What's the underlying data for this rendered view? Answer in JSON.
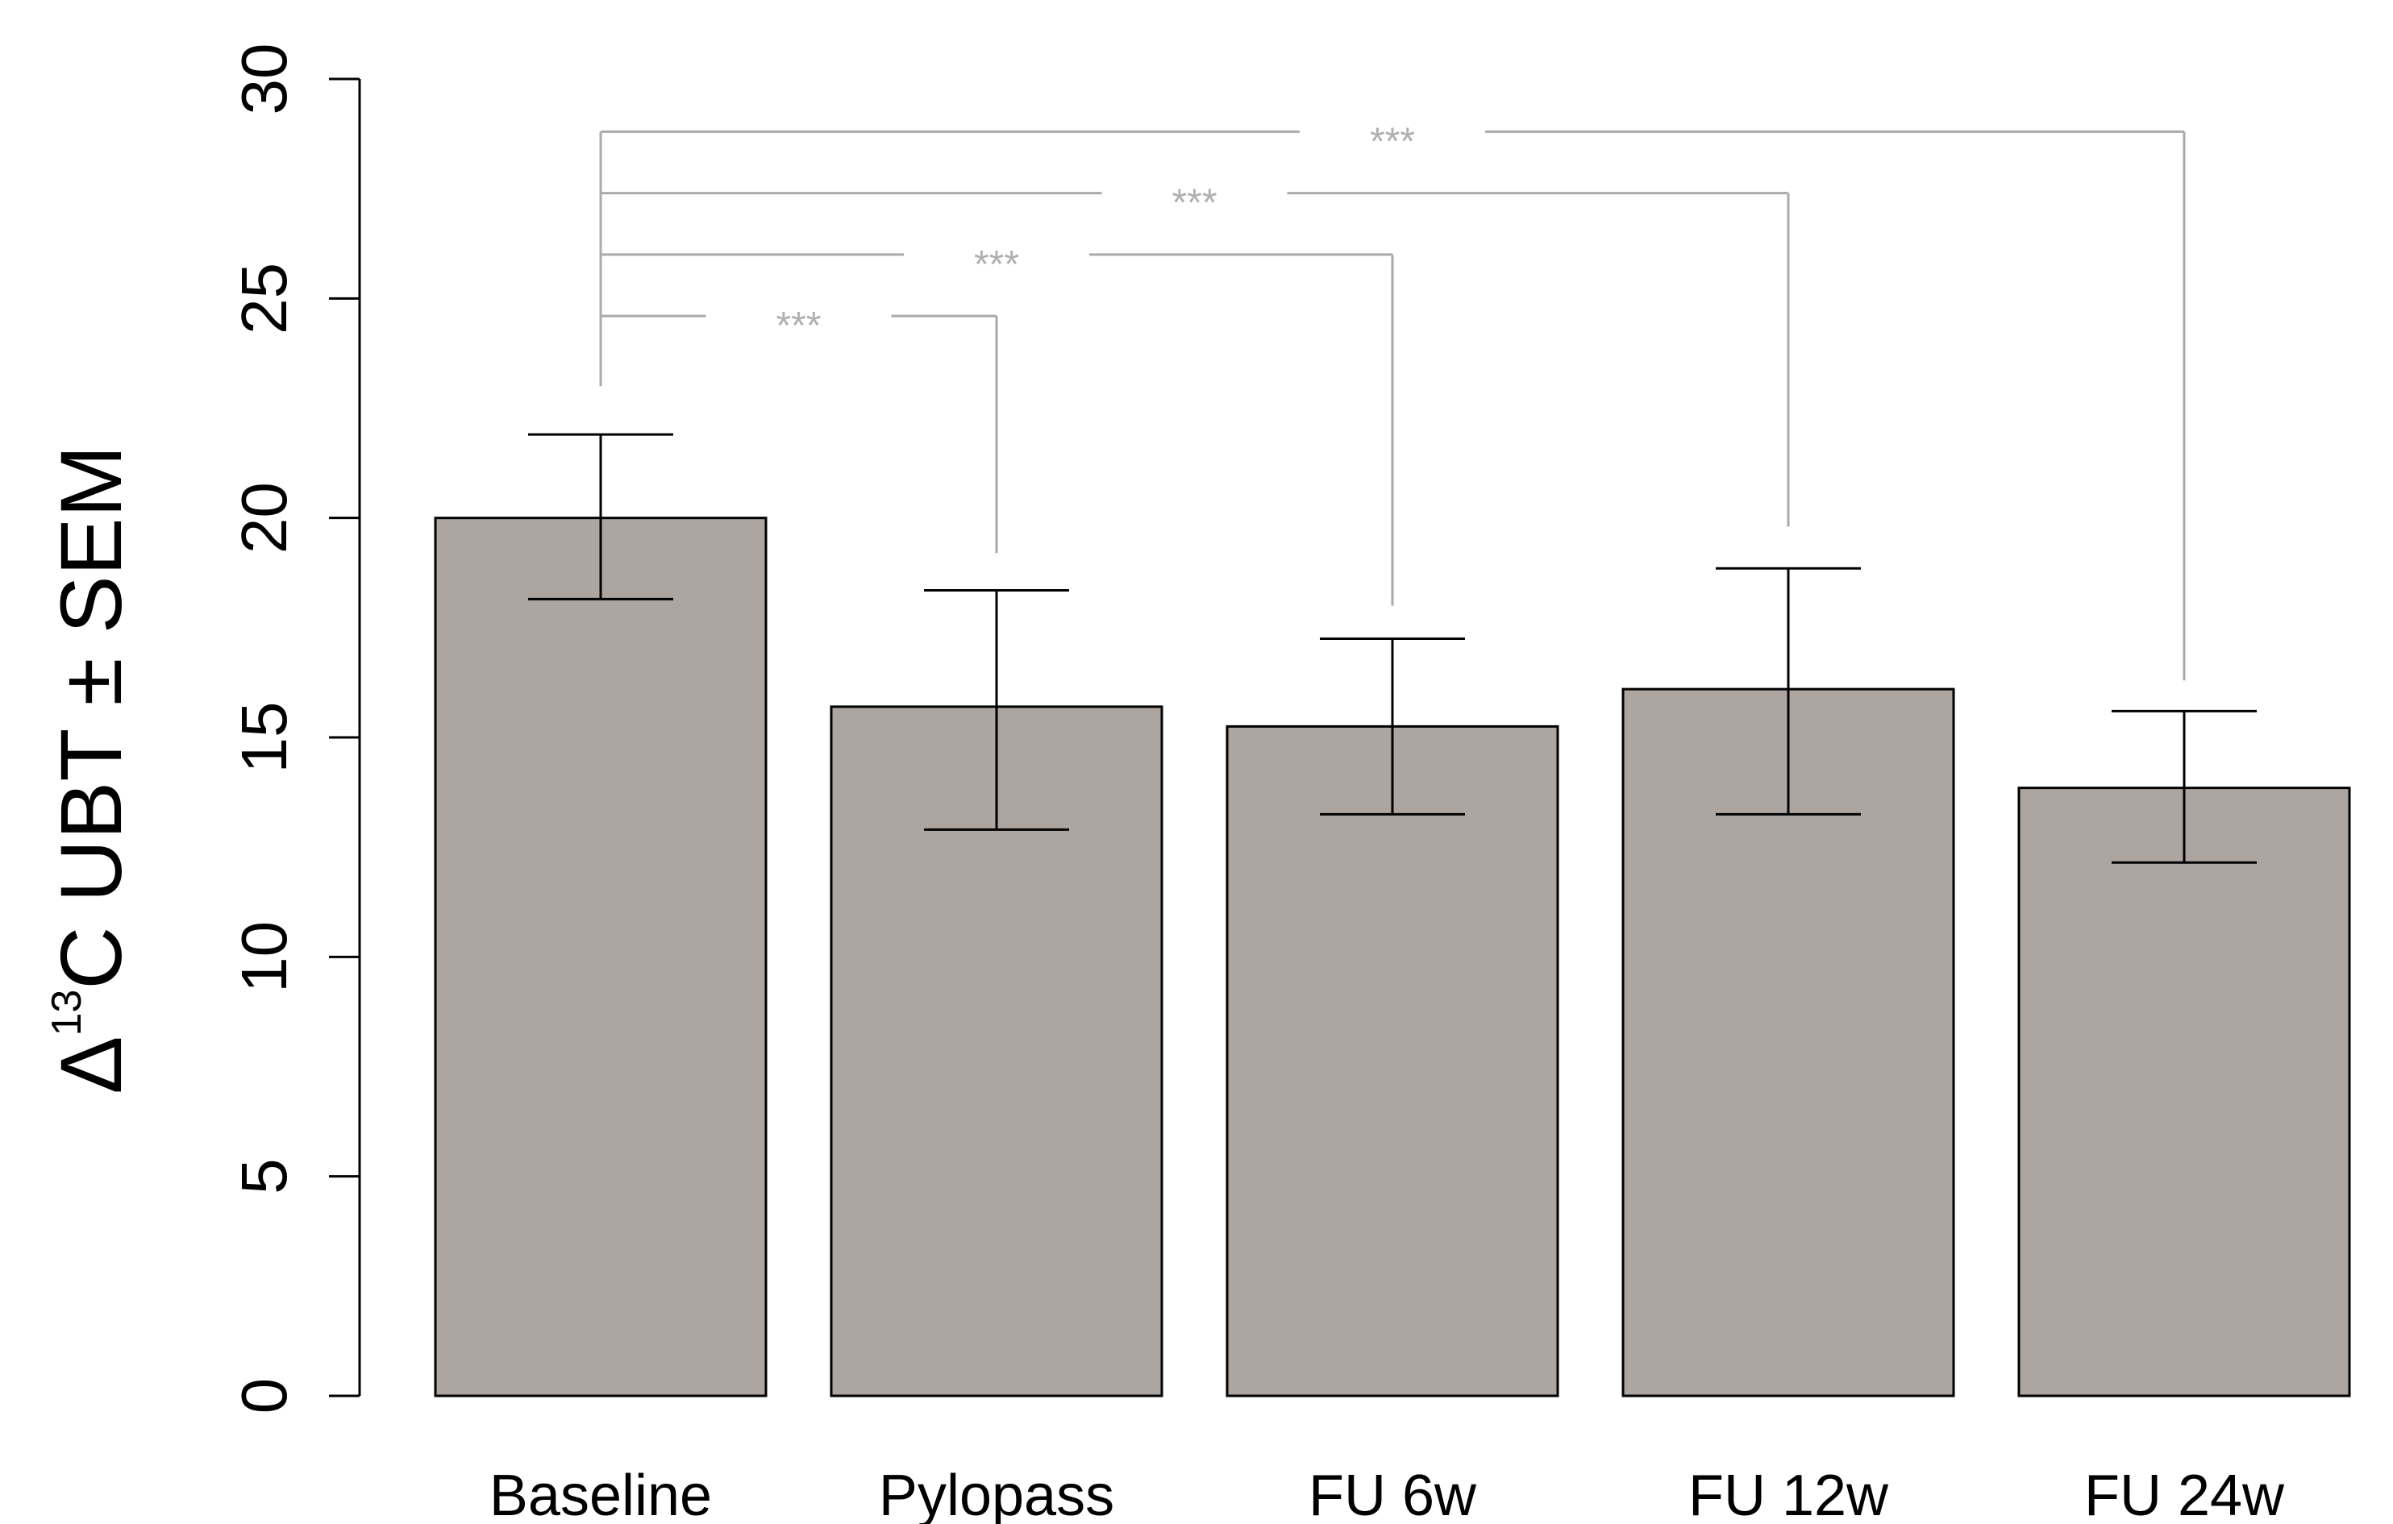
{
  "chart_data": {
    "type": "bar",
    "title": "",
    "xlabel": "",
    "ylabel": "Δ",
    "ylabel_sup": "13",
    "ylabel_rest": "C UBT ± SEM",
    "categories": [
      "Baseline",
      "Pylopass",
      "FU 6w",
      "FU 12w",
      "FU 24w"
    ],
    "values": [
      20.0,
      15.7,
      15.25,
      16.1,
      13.85
    ],
    "error_low": [
      18.15,
      12.9,
      13.25,
      13.25,
      12.15
    ],
    "error_high": [
      21.9,
      18.35,
      17.25,
      18.85,
      15.6
    ],
    "ylim": [
      0,
      30
    ],
    "yticks": [
      0,
      5,
      10,
      15,
      20,
      25,
      30
    ],
    "grid": false,
    "colors": {
      "bar_fill": "#ada59f",
      "bar_stroke": "#000000",
      "errorbar": "#000000",
      "bracket": "#aaaaaa",
      "significance_text": "#b0b0b0"
    },
    "significance": [
      {
        "from": 0,
        "to": 1,
        "label": "***",
        "y": 24.6,
        "drop_end": 19.2
      },
      {
        "from": 0,
        "to": 2,
        "label": "***",
        "y": 26.0,
        "drop_end": 18.0
      },
      {
        "from": 0,
        "to": 3,
        "label": "***",
        "y": 27.4,
        "drop_end": 19.8
      },
      {
        "from": 0,
        "to": 4,
        "label": "***",
        "y": 28.8,
        "drop_end": 16.3
      }
    ],
    "bracket_start": 23.0
  }
}
